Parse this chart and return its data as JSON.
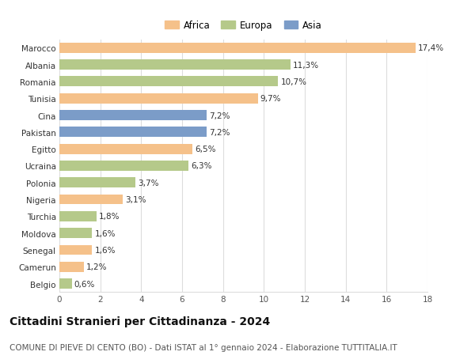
{
  "countries": [
    "Marocco",
    "Albania",
    "Romania",
    "Tunisia",
    "Cina",
    "Pakistan",
    "Egitto",
    "Ucraina",
    "Polonia",
    "Nigeria",
    "Turchia",
    "Moldova",
    "Senegal",
    "Camerun",
    "Belgio"
  ],
  "values": [
    17.4,
    11.3,
    10.7,
    9.7,
    7.2,
    7.2,
    6.5,
    6.3,
    3.7,
    3.1,
    1.8,
    1.6,
    1.6,
    1.2,
    0.6
  ],
  "labels": [
    "17,4%",
    "11,3%",
    "10,7%",
    "9,7%",
    "7,2%",
    "7,2%",
    "6,5%",
    "6,3%",
    "3,7%",
    "3,1%",
    "1,8%",
    "1,6%",
    "1,6%",
    "1,2%",
    "0,6%"
  ],
  "continents": [
    "Africa",
    "Europa",
    "Europa",
    "Africa",
    "Asia",
    "Asia",
    "Africa",
    "Europa",
    "Europa",
    "Africa",
    "Europa",
    "Europa",
    "Africa",
    "Africa",
    "Europa"
  ],
  "colors": {
    "Africa": "#F5C18A",
    "Europa": "#B5C98A",
    "Asia": "#7B9CC8"
  },
  "legend": [
    "Africa",
    "Europa",
    "Asia"
  ],
  "legend_colors": [
    "#F5C18A",
    "#B5C98A",
    "#7B9CC8"
  ],
  "xlim": [
    0,
    18
  ],
  "xticks": [
    0,
    2,
    4,
    6,
    8,
    10,
    12,
    14,
    16,
    18
  ],
  "title": "Cittadini Stranieri per Cittadinanza - 2024",
  "subtitle": "COMUNE DI PIEVE DI CENTO (BO) - Dati ISTAT al 1° gennaio 2024 - Elaborazione TUTTITALIA.IT",
  "background_color": "#ffffff",
  "grid_color": "#dddddd",
  "title_fontsize": 10,
  "subtitle_fontsize": 7.5,
  "label_fontsize": 7.5,
  "tick_fontsize": 7.5,
  "country_fontsize": 7.5
}
